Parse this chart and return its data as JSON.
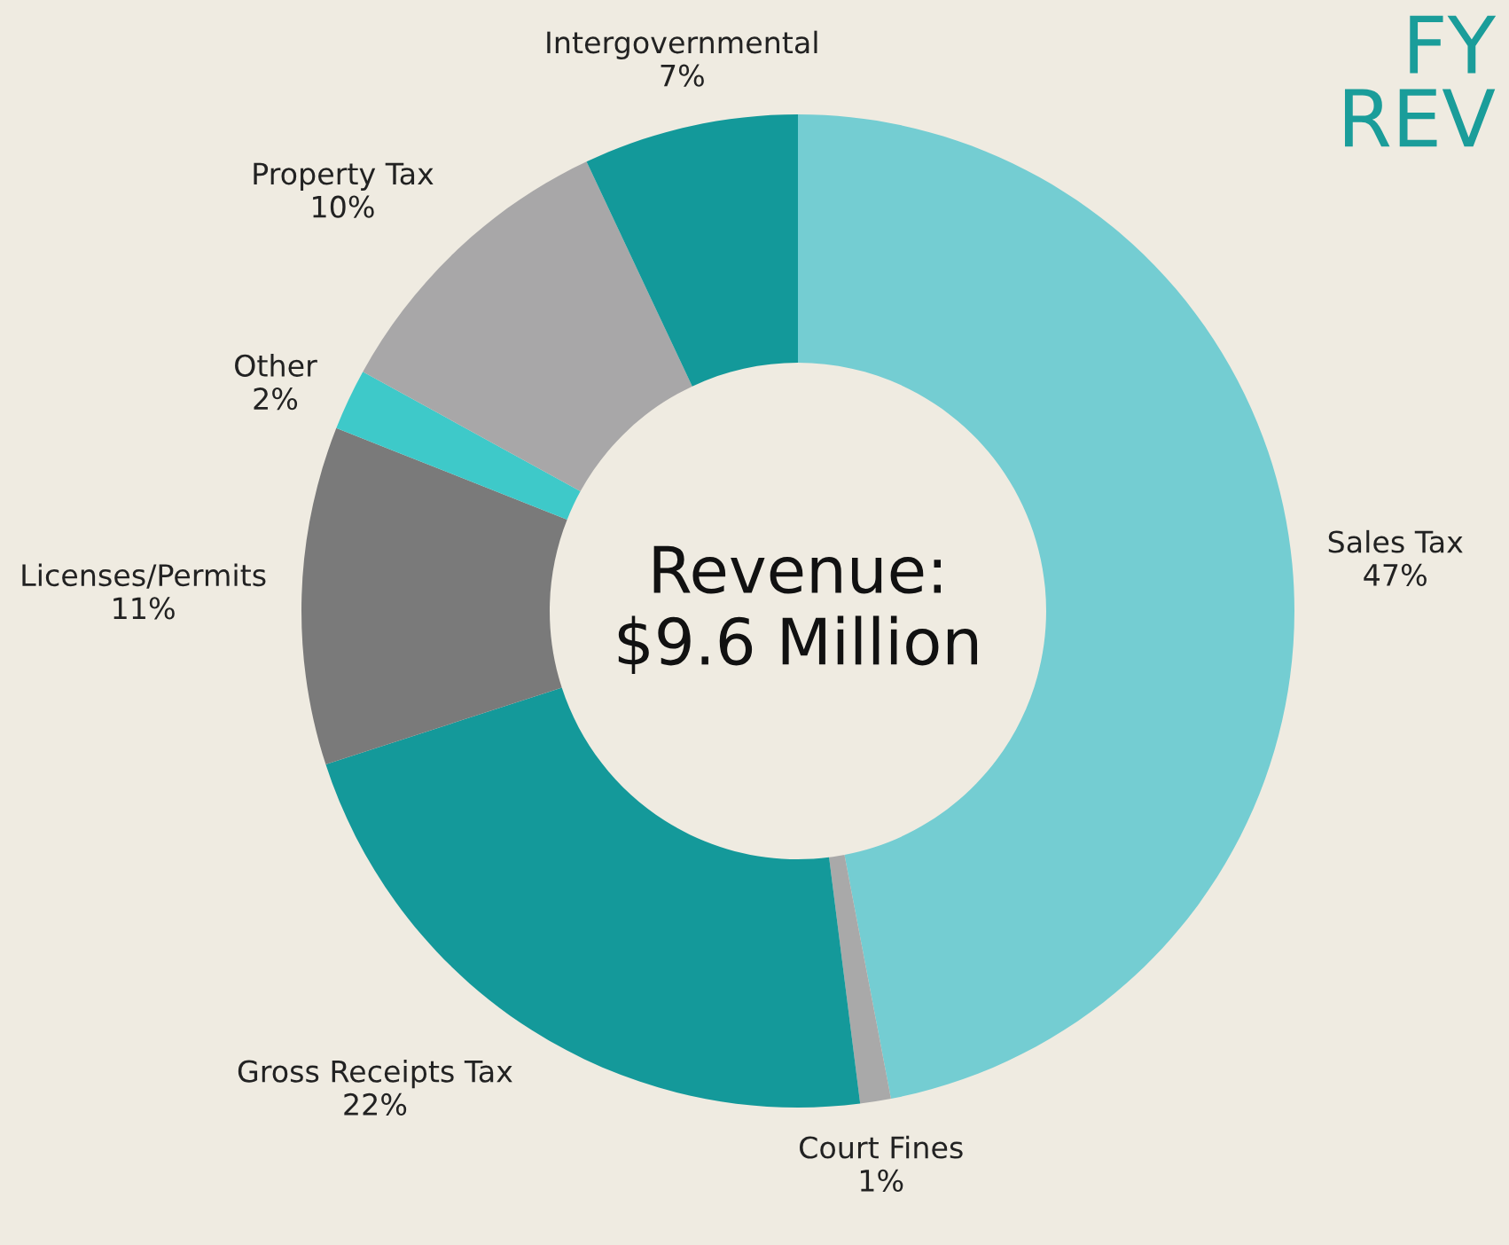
{
  "chart_data": {
    "type": "donut",
    "title": "FY\nREV",
    "categories": [
      "Sales Tax",
      "Court Fines",
      "Gross Receipts Tax",
      "Licenses/Permits",
      "Other",
      "Property Tax",
      "Intergovernmental"
    ],
    "values": [
      47,
      1,
      22,
      11,
      2,
      10,
      7
    ],
    "value_labels": [
      "47%",
      "1%",
      "22%",
      "11%",
      "2%",
      "10%",
      "7%"
    ],
    "colors": [
      "#74cdd2",
      "#a9a9a9",
      "#14999a",
      "#7a7a7a",
      "#3ec9c9",
      "#a8a7a8",
      "#13999a"
    ],
    "annotations": [
      "Revenue:\n$9.6 Million"
    ],
    "legend": false
  }
}
